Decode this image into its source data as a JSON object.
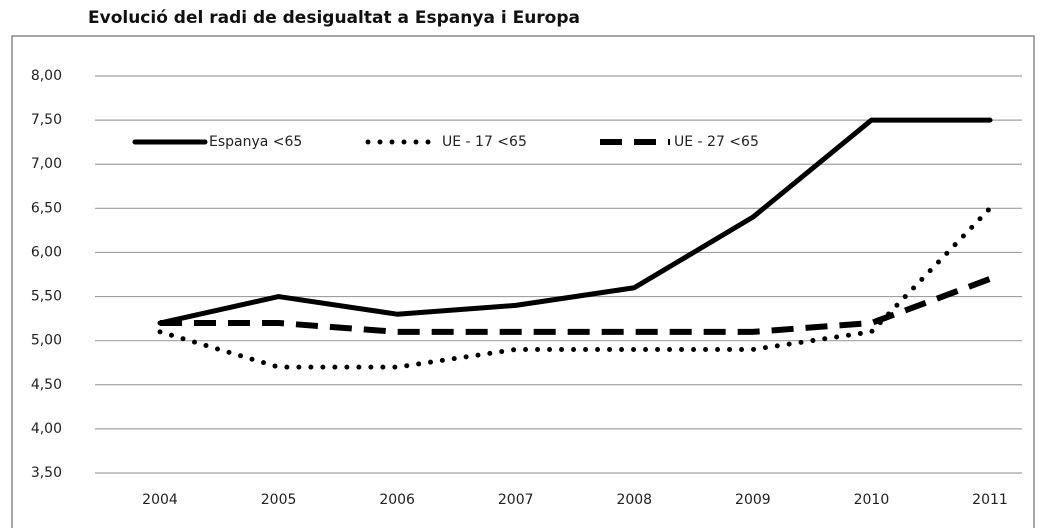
{
  "chart_data": {
    "type": "line",
    "title": "Evolució del radi de desigualtat a Espanya i Europa",
    "categories": [
      "2004",
      "2005",
      "2006",
      "2007",
      "2008",
      "2009",
      "2010",
      "2011"
    ],
    "series": [
      {
        "name": "Espanya <65",
        "color": "#000000",
        "line_style": "solid",
        "values": [
          5.2,
          5.5,
          5.3,
          5.4,
          5.6,
          6.4,
          7.5,
          7.5
        ]
      },
      {
        "name": "UE - 17 <65",
        "color": "#000000",
        "line_style": "dotted",
        "values": [
          5.1,
          4.7,
          4.7,
          4.9,
          4.9,
          4.9,
          5.1,
          6.5
        ]
      },
      {
        "name": "UE - 27 <65",
        "color": "#000000",
        "line_style": "dashed",
        "values": [
          5.2,
          5.2,
          5.1,
          5.1,
          5.1,
          5.1,
          5.2,
          5.7
        ]
      }
    ],
    "ylim": [
      3.5,
      8.0
    ],
    "yticks": [
      {
        "value": 3.5,
        "label": "3,50"
      },
      {
        "value": 4.0,
        "label": "4,00"
      },
      {
        "value": 4.5,
        "label": "4,50"
      },
      {
        "value": 5.0,
        "label": "5,00"
      },
      {
        "value": 5.5,
        "label": "5,50"
      },
      {
        "value": 6.0,
        "label": "6,00"
      },
      {
        "value": 6.5,
        "label": "6,50"
      },
      {
        "value": 7.0,
        "label": "7,00"
      },
      {
        "value": 7.5,
        "label": "7,50"
      },
      {
        "value": 8.0,
        "label": "8,00"
      }
    ],
    "grid": true,
    "legend": "top-left"
  }
}
